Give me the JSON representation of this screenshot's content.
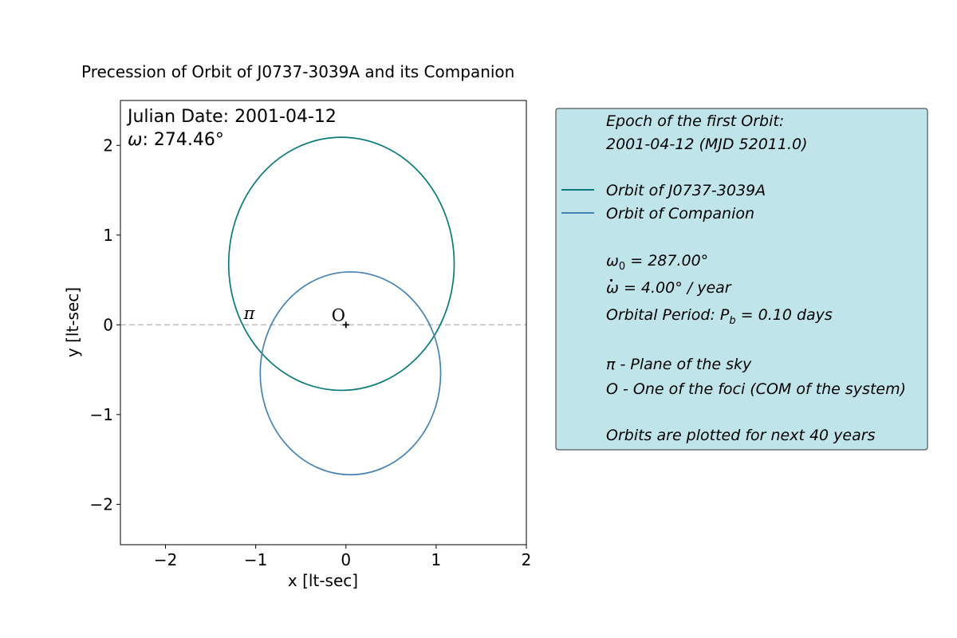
{
  "chart_data": {
    "type": "line",
    "title": "Precession of Orbit of J0737-3039A and its Companion",
    "xlabel": "x [lt-sec]",
    "ylabel": "y [lt-sec]",
    "xlim": [
      -2.5,
      2.0
    ],
    "ylim": [
      -2.45,
      2.5
    ],
    "xticks": [
      -2,
      -1,
      0,
      1,
      2
    ],
    "yticks": [
      -2,
      -1,
      0,
      1,
      2
    ],
    "xtick_labels": [
      "−2",
      "−1",
      "0",
      "1",
      "2"
    ],
    "ytick_labels": [
      "−2",
      "−1",
      "0",
      "1",
      "2"
    ],
    "grid": false,
    "reference_line": {
      "y": 0,
      "style": "dashed",
      "color": "#c0c0c0"
    },
    "series": [
      {
        "name": "Orbit of J0737-3039A",
        "color": "#0a7a7a",
        "ellipse": {
          "cx": -0.05,
          "cy": 0.68,
          "rx": 1.25,
          "ry": 1.41
        }
      },
      {
        "name": "Orbit of Companion",
        "color": "#4682b4",
        "ellipse": {
          "cx": 0.05,
          "cy": -0.54,
          "rx": 1.0,
          "ry": 1.13
        }
      }
    ],
    "focus_marker": {
      "x": 0,
      "y": 0,
      "label": "O"
    },
    "plane_label": {
      "x": -1.08,
      "y": 0.1,
      "label": "π"
    },
    "annotations": {
      "date_label": "Julian Date: 2001-04-12",
      "omega_symbol": "ω",
      "omega_value": ": 274.46°"
    },
    "legend": {
      "placement": "right, outside plot",
      "background": "#bfe5ea",
      "epoch_line1": "Epoch of the first Orbit:",
      "epoch_line2": "2001-04-12 (MJD 52011.0)",
      "entry1": "Orbit of J0737-3039A",
      "entry2": "Orbit of Companion",
      "omega0_symbol": "ω",
      "omega0_sub": "0",
      "omega0_value": " = 287.00°",
      "omegadot_symbol": "ω",
      "omegadot_value": " = 4.00° / year",
      "period_prefix": "Orbital Period: P",
      "period_sub": "b",
      "period_value": " = 0.10 days",
      "pi_line": "π - Plane of the sky",
      "o_line": "O - One of the foci (COM of the system)",
      "footer": "Orbits are plotted for next 40 years"
    }
  }
}
